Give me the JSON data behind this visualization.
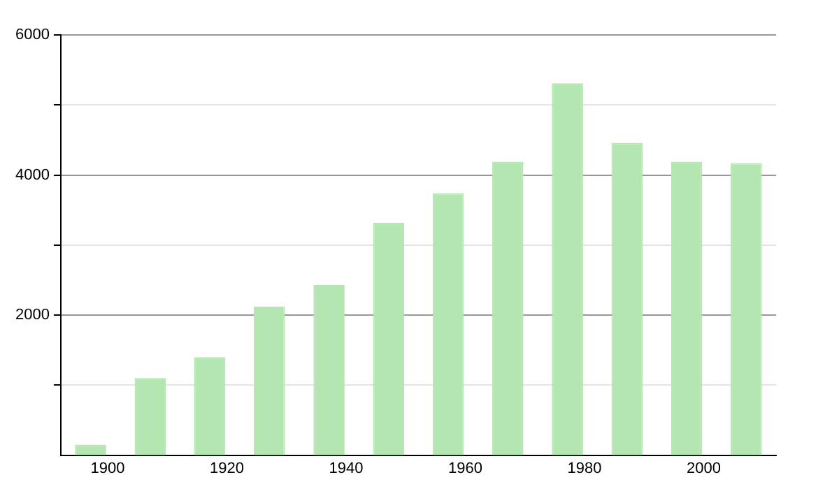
{
  "chart_data": {
    "type": "bar",
    "categories": [
      "1900",
      null,
      "1920",
      null,
      "1940",
      null,
      "1960",
      null,
      "1980",
      null,
      "2000",
      null
    ],
    "values": [
      150,
      1100,
      1400,
      2120,
      2430,
      3320,
      3740,
      4190,
      5310,
      4460,
      4190,
      4170
    ],
    "color": "#b3e6b0",
    "ylim": [
      0,
      6000
    ],
    "yticks": [
      {
        "value": 1000,
        "label": null
      },
      2000,
      {
        "value": 3000,
        "label": null
      },
      4000,
      {
        "value": 5000,
        "label": null
      },
      6000
    ],
    "grid": "y"
  }
}
